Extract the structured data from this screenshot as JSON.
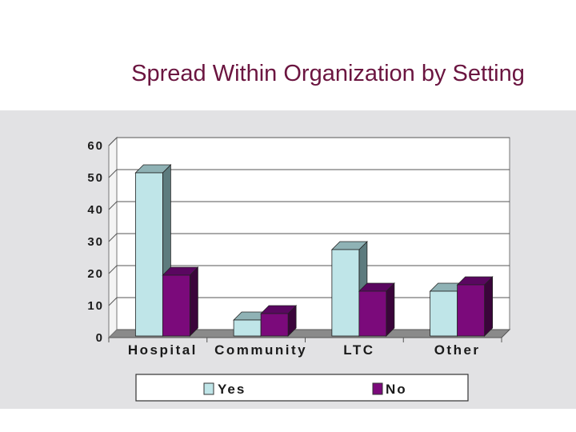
{
  "title": "Spread Within Organization by Setting",
  "colors": {
    "yes": "#bfe5e8",
    "yes_side": "#5d7b7e",
    "yes_top": "#8fb2b5",
    "no": "#7b0a7b",
    "no_side": "#3a053a",
    "no_top": "#5a0760",
    "panel_bg": "#e2e2e4",
    "title": "#6b1540"
  },
  "chart_data": {
    "type": "bar",
    "style": "3d-clustered-column",
    "title": "Spread Within Organization by Setting",
    "categories": [
      "Hospital",
      "Community",
      "LTC",
      "Other"
    ],
    "series": [
      {
        "name": "Yes",
        "values": [
          51,
          5,
          27,
          14
        ]
      },
      {
        "name": "No",
        "values": [
          19,
          7,
          14,
          16
        ]
      }
    ],
    "ylim": [
      0,
      60
    ],
    "yticks": [
      "0",
      "10",
      "20",
      "30",
      "40",
      "50",
      "60"
    ],
    "xlabel": "",
    "ylabel": "",
    "grid": true,
    "legend_position": "bottom"
  }
}
